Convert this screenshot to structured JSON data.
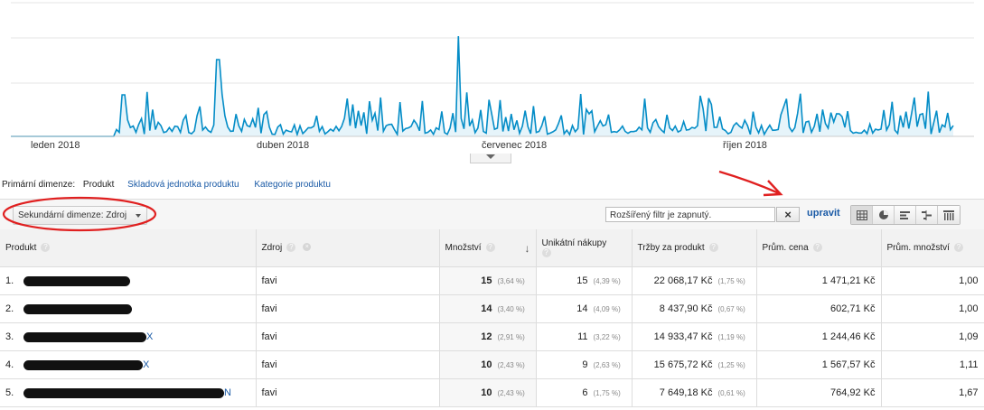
{
  "chart": {
    "x_labels": [
      "leden 2018",
      "duben 2018",
      "červenec 2018",
      "říjen 2018"
    ],
    "line_color": "#058dc7",
    "fill_color": "#e6f4fa"
  },
  "dimensions": {
    "primary_label": "Primární dimenze:",
    "active": "Produkt",
    "links": [
      "Skladová jednotka produktu",
      "Kategorie produktu"
    ]
  },
  "toolbar": {
    "secondary_dimension": "Sekundární dimenze: Zdroj",
    "filter_text": "Rozšířený filtr je zapnutý.",
    "clear_symbol": "×",
    "edit_label": "upravit"
  },
  "table": {
    "headers": {
      "product": "Produkt",
      "source": "Zdroj",
      "quantity": "Množství",
      "unique": "Unikátní nákupy",
      "revenue": "Tržby za produkt",
      "avg_price": "Prům. cena",
      "avg_qty": "Prům. množství"
    },
    "rows": [
      {
        "idx": "1.",
        "source": "favi",
        "quantity": "15",
        "quantity_pct": "(3,64 %)",
        "unique": "15",
        "unique_pct": "(4,39 %)",
        "revenue": "22 068,17 Kč",
        "revenue_pct": "(1,75 %)",
        "avg_price": "1 471,21 Kč",
        "avg_qty": "1,00",
        "suffix": ""
      },
      {
        "idx": "2.",
        "source": "favi",
        "quantity": "14",
        "quantity_pct": "(3,40 %)",
        "unique": "14",
        "unique_pct": "(4,09 %)",
        "revenue": "8 437,90 Kč",
        "revenue_pct": "(0,67 %)",
        "avg_price": "602,71 Kč",
        "avg_qty": "1,00",
        "suffix": ""
      },
      {
        "idx": "3.",
        "source": "favi",
        "quantity": "12",
        "quantity_pct": "(2,91 %)",
        "unique": "11",
        "unique_pct": "(3,22 %)",
        "revenue": "14 933,47 Kč",
        "revenue_pct": "(1,19 %)",
        "avg_price": "1 244,46 Kč",
        "avg_qty": "1,09",
        "suffix": "X"
      },
      {
        "idx": "4.",
        "source": "favi",
        "quantity": "10",
        "quantity_pct": "(2,43 %)",
        "unique": "9",
        "unique_pct": "(2,63 %)",
        "revenue": "15 675,72 Kč",
        "revenue_pct": "(1,25 %)",
        "avg_price": "1 567,57 Kč",
        "avg_qty": "1,11",
        "suffix": "X"
      },
      {
        "idx": "5.",
        "source": "favi",
        "quantity": "10",
        "quantity_pct": "(2,43 %)",
        "unique": "6",
        "unique_pct": "(1,75 %)",
        "revenue": "7 649,18 Kč",
        "revenue_pct": "(0,61 %)",
        "avg_price": "764,92 Kč",
        "avg_qty": "1,67",
        "suffix": "N"
      }
    ]
  },
  "annotation_color": "#e02020"
}
